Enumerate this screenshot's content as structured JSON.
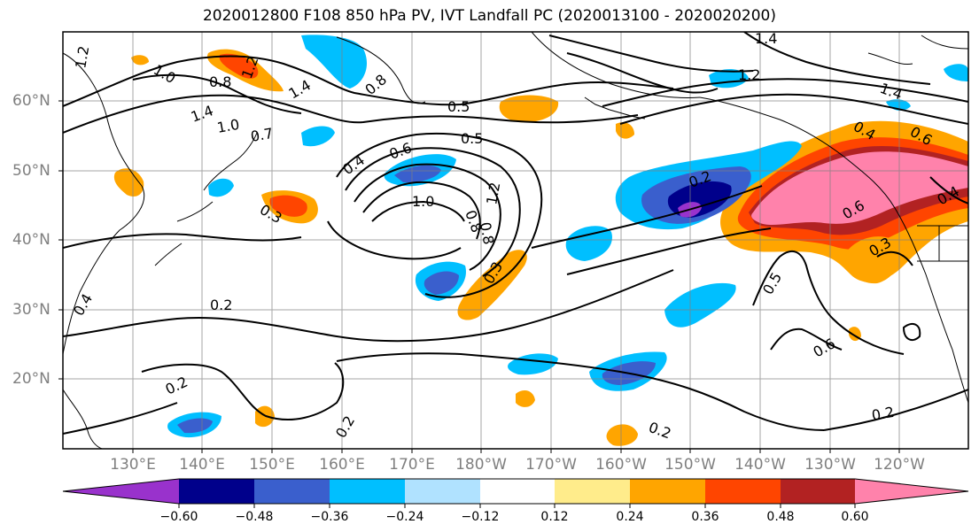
{
  "title": "2020012800 F108 850 hPa PV, IVT Landfall PC (2020013100 - 2020020200)",
  "lat_labels": [
    "60°N",
    "50°N",
    "40°N",
    "30°N",
    "20°N"
  ],
  "lon_labels": [
    "130°E",
    "140°E",
    "150°E",
    "160°E",
    "170°E",
    "180°W",
    "170°W",
    "160°W",
    "150°W",
    "140°W",
    "130°W",
    "120°W"
  ],
  "contour_labels": [
    "1.2",
    "1.0",
    "0.8",
    "1.2",
    "1.4",
    "1.4",
    "1.0",
    "0.7",
    "0.8",
    "0.5",
    "0.5",
    "0.4",
    "0.6",
    "1.0",
    "0.8",
    "1.2",
    "0.3",
    "0.8",
    "0.3",
    "0.4",
    "0.2",
    "0.2",
    "0.2",
    "1.4",
    "1.2",
    "1.4",
    "0.6",
    "0.4",
    "0.2",
    "0.5",
    "0.6",
    "0.3",
    "0.6",
    "0.4",
    "0.2",
    "0.2"
  ],
  "colorbar": {
    "colors": [
      "#9932cc",
      "#00008b",
      "#3a5fcd",
      "#00bfff",
      "#b0e2ff",
      "#ffffff",
      "#ffec8b",
      "#ffa500",
      "#ff4500",
      "#b22222",
      "#ff82ab"
    ],
    "tick_labels": [
      "−0.60",
      "−0.48",
      "−0.36",
      "−0.24",
      "−0.12",
      "0.12",
      "0.24",
      "0.36",
      "0.48",
      "0.60"
    ]
  }
}
